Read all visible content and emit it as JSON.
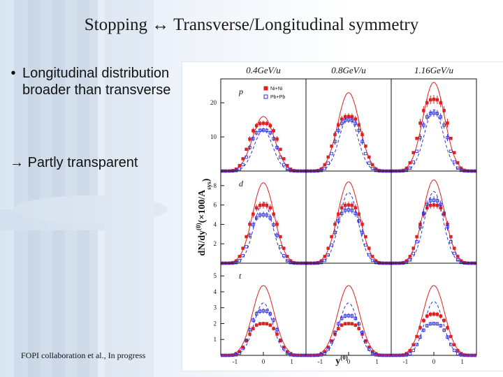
{
  "slide": {
    "title": "Stopping ↔ Transverse/Longitudinal symmetry",
    "bullets": [
      "Longitudinal distribution broader than transverse"
    ],
    "bullet_symbol": "•",
    "arrow_symbol": "→",
    "arrow_text": "Partly transparent",
    "credit": "FOPI collaboration et al., In progress"
  },
  "chart_data": {
    "type": "scatter",
    "columns": [
      "0.4GeV/u",
      "0.8GeV/u",
      "1.16GeV/u"
    ],
    "rows": [
      "p",
      "d",
      "t"
    ],
    "xlabel": "y",
    "xlabel_superscript": "(0)",
    "ylabel": "dN/dy",
    "ylabel_superscript": "(0)",
    "ylabel_suffix": "(×100/A",
    "ylabel_subscript": "sys",
    "ylabel_end": ")",
    "xlim": [
      -1.5,
      1.5
    ],
    "x_ticks": [
      -1,
      0,
      1
    ],
    "x_tick_labels": [
      "-1",
      "0",
      "1"
    ],
    "ylim_by_row": [
      [
        0,
        27
      ],
      [
        0,
        9.5
      ],
      [
        0,
        5.8
      ]
    ],
    "y_ticks_by_row": [
      [
        10,
        20
      ],
      [
        2,
        4,
        6,
        8
      ],
      [
        1,
        2,
        3,
        4,
        5
      ]
    ],
    "legend": {
      "entries": [
        {
          "name": "Ni+Ni",
          "color": "#e02020",
          "marker": "filled-square"
        },
        {
          "name": "Pb+Pb",
          "color": "#3030d8",
          "marker": "open-square"
        }
      ]
    },
    "colors": {
      "nini": "#e02020",
      "pbpb": "#3030d8"
    },
    "peaks": {
      "nini": [
        [
          14,
          16,
          21
        ],
        [
          6,
          6,
          6
        ],
        [
          2.0,
          2.0,
          2.6
        ]
      ],
      "pbpb": [
        [
          12,
          15,
          17
        ],
        [
          5,
          5.5,
          6.5
        ],
        [
          2.8,
          2.5,
          2.0
        ]
      ]
    },
    "widths": {
      "nini": 0.5,
      "pbpb": 0.45
    },
    "curve_peaks": {
      "solid": [
        [
          16,
          23,
          26
        ],
        [
          8.3,
          8.4,
          8.6
        ],
        [
          4.4,
          4.4,
          4.4
        ]
      ],
      "dashed": [
        [
          12,
          16,
          18
        ],
        [
          6.3,
          7.3,
          7.4
        ],
        [
          3.3,
          3.3,
          3.4
        ]
      ]
    },
    "curve_widths": {
      "solid": 0.38,
      "dashed": 0.33
    }
  }
}
